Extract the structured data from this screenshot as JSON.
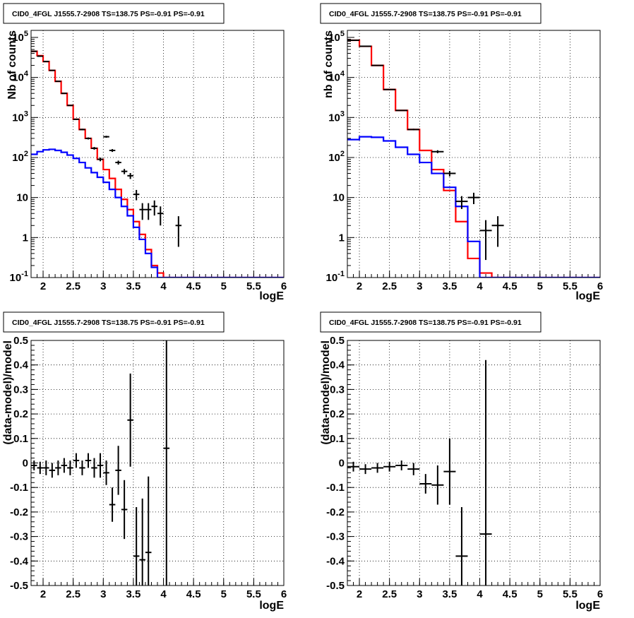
{
  "chart_data": [
    {
      "type": "histogram",
      "title": "CID0_4FGL J1555.7-2908 TS=138.75 PS=-0.91 PS=-0.91",
      "xlabel": "logE",
      "ylabel": "Nb of counts",
      "xlim": [
        1.8,
        6
      ],
      "ylim": [
        0.1,
        150000
      ],
      "yscale": "log",
      "grid": true,
      "x_ticks": [
        "2",
        "2.5",
        "3",
        "3.5",
        "4",
        "4.5",
        "5",
        "5.5",
        "6"
      ],
      "y_ticks": [
        "10^-1",
        "1",
        "10",
        "10^2",
        "10^3",
        "10^4",
        "10^5"
      ],
      "bin_width": 0.1,
      "bin_start": 1.8,
      "series": [
        {
          "role": "total_model",
          "color": "#ff0000",
          "values": [
            45000,
            35000,
            25000,
            15000,
            8000,
            4000,
            2000,
            900,
            500,
            300,
            170,
            90,
            50,
            30,
            16,
            9,
            5,
            2.5,
            1.2,
            0.5,
            0.2,
            0.13,
            0.1,
            0.1,
            0.1,
            0.1,
            0.1,
            0.1,
            0.1,
            0.1,
            0.1,
            0.1,
            0.1,
            0.1,
            0.1,
            0.1,
            0.1,
            0.1,
            0.1,
            0.1,
            0.1,
            0.1
          ]
        },
        {
          "role": "source_model",
          "color": "#0000ff",
          "values": [
            120,
            140,
            155,
            160,
            150,
            135,
            115,
            95,
            75,
            55,
            42,
            32,
            24,
            16,
            10,
            6,
            3.5,
            1.8,
            0.9,
            0.4,
            0.18,
            0.1,
            0.1,
            0.1,
            0.1,
            0.1,
            0.1,
            0.1,
            0.1,
            0.1,
            0.1,
            0.1,
            0.1,
            0.1,
            0.1,
            0.1,
            0.1,
            0.1,
            0.1,
            0.1,
            0.1,
            0.1
          ]
        },
        {
          "role": "data",
          "color": "#000000",
          "points": [
            {
              "x": 1.85,
              "y": 45000
            },
            {
              "x": 1.95,
              "y": 34000
            },
            {
              "x": 2.05,
              "y": 25000
            },
            {
              "x": 2.15,
              "y": 15000
            },
            {
              "x": 2.25,
              "y": 8000
            },
            {
              "x": 2.35,
              "y": 4000
            },
            {
              "x": 2.45,
              "y": 2000
            },
            {
              "x": 2.55,
              "y": 900
            },
            {
              "x": 2.65,
              "y": 500
            },
            {
              "x": 2.75,
              "y": 300
            },
            {
              "x": 2.85,
              "y": 170
            },
            {
              "x": 2.95,
              "y": 90
            },
            {
              "x": 3.05,
              "y": 330
            },
            {
              "x": 3.15,
              "y": 150
            },
            {
              "x": 3.25,
              "y": 75
            },
            {
              "x": 3.35,
              "y": 45
            },
            {
              "x": 3.45,
              "y": 35
            },
            {
              "x": 3.55,
              "y": 12
            },
            {
              "x": 3.65,
              "y": 5
            },
            {
              "x": 3.75,
              "y": 5
            },
            {
              "x": 3.85,
              "y": 6
            },
            {
              "x": 3.95,
              "y": 4
            },
            {
              "x": 4.25,
              "y": 2
            }
          ]
        }
      ]
    },
    {
      "type": "histogram",
      "title": "CID0_4FGL J1555.7-2908 TS=138.75 PS=-0.91 PS=-0.91",
      "xlabel": "logE",
      "ylabel": "nb of counts",
      "xlim": [
        1.8,
        6
      ],
      "ylim": [
        0.1,
        150000
      ],
      "yscale": "log",
      "grid": true,
      "x_ticks": [
        "2",
        "2.5",
        "3",
        "3.5",
        "4",
        "4.5",
        "5",
        "5.5",
        "6"
      ],
      "y_ticks": [
        "10^-1",
        "1",
        "10",
        "10^2",
        "10^3",
        "10^4",
        "10^5"
      ],
      "bin_width": 0.2,
      "bin_start": 1.8,
      "series": [
        {
          "role": "total_model",
          "color": "#ff0000",
          "values": [
            85000,
            60000,
            20000,
            5000,
            1500,
            500,
            150,
            50,
            15,
            2.5,
            0.3,
            0.13,
            0.1,
            0.1,
            0.1,
            0.1,
            0.1,
            0.1,
            0.1,
            0.1,
            0.1
          ]
        },
        {
          "role": "source_model",
          "color": "#0000ff",
          "values": [
            280,
            330,
            320,
            260,
            180,
            120,
            75,
            40,
            18,
            6,
            0.8,
            0.1,
            0.1,
            0.1,
            0.1,
            0.1,
            0.1,
            0.1,
            0.1,
            0.1,
            0.1
          ]
        },
        {
          "role": "data",
          "color": "#000000",
          "points": [
            {
              "x": 1.9,
              "y": 85000
            },
            {
              "x": 2.1,
              "y": 60000
            },
            {
              "x": 2.3,
              "y": 20000
            },
            {
              "x": 2.5,
              "y": 5000
            },
            {
              "x": 2.7,
              "y": 1500
            },
            {
              "x": 2.9,
              "y": 500
            },
            {
              "x": 3.3,
              "y": 140
            },
            {
              "x": 3.5,
              "y": 40
            },
            {
              "x": 3.7,
              "y": 8
            },
            {
              "x": 3.9,
              "y": 10
            },
            {
              "x": 4.1,
              "y": 1.5
            },
            {
              "x": 4.3,
              "y": 2
            }
          ]
        }
      ]
    },
    {
      "type": "scatter",
      "title": "CID0_4FGL J1555.7-2908 TS=138.75 PS=-0.91 PS=-0.91",
      "xlabel": "logE",
      "ylabel": "(data-model)/model",
      "xlim": [
        1.8,
        6
      ],
      "ylim": [
        -0.5,
        0.5
      ],
      "grid": true,
      "x_ticks": [
        "2",
        "2.5",
        "3",
        "3.5",
        "4",
        "4.5",
        "5",
        "5.5",
        "6"
      ],
      "y_ticks": [
        "-0.5",
        "-0.4",
        "-0.3",
        "-0.2",
        "-0.1",
        "0",
        "0.1",
        "0.2",
        "0.3",
        "0.4",
        "0.5"
      ],
      "xerr": 0.05,
      "points": [
        {
          "x": 1.85,
          "y": -0.01,
          "err": 0.02
        },
        {
          "x": 1.95,
          "y": -0.02,
          "err": 0.025
        },
        {
          "x": 2.05,
          "y": -0.02,
          "err": 0.03
        },
        {
          "x": 2.15,
          "y": -0.03,
          "err": 0.03
        },
        {
          "x": 2.25,
          "y": -0.02,
          "err": 0.03
        },
        {
          "x": 2.35,
          "y": -0.01,
          "err": 0.03
        },
        {
          "x": 2.45,
          "y": -0.02,
          "err": 0.03
        },
        {
          "x": 2.55,
          "y": 0.01,
          "err": 0.03
        },
        {
          "x": 2.65,
          "y": -0.02,
          "err": 0.03
        },
        {
          "x": 2.75,
          "y": 0.01,
          "err": 0.03
        },
        {
          "x": 2.85,
          "y": -0.02,
          "err": 0.04
        },
        {
          "x": 2.95,
          "y": -0.01,
          "err": 0.05
        },
        {
          "x": 3.05,
          "y": -0.04,
          "err": 0.05
        },
        {
          "x": 3.15,
          "y": -0.17,
          "err": 0.07
        },
        {
          "x": 3.25,
          "y": -0.03,
          "err": 0.1
        },
        {
          "x": 3.35,
          "y": -0.19,
          "err": 0.12
        },
        {
          "x": 3.45,
          "y": 0.175,
          "err": 0.19
        },
        {
          "x": 3.55,
          "y": -0.38,
          "err": 0.2
        },
        {
          "x": 3.65,
          "y": -0.395,
          "err": 0.25
        },
        {
          "x": 3.75,
          "y": -0.365,
          "err": 0.31
        },
        {
          "x": 4.05,
          "y": 0.06,
          "err": 0.9
        }
      ]
    },
    {
      "type": "scatter",
      "title": "CID0_4FGL J1555.7-2908 TS=138.75 PS=-0.91 PS=-0.91",
      "xlabel": "logE",
      "ylabel": "(data-model)/model",
      "xlim": [
        1.8,
        6
      ],
      "ylim": [
        -0.5,
        0.5
      ],
      "grid": true,
      "x_ticks": [
        "2",
        "2.5",
        "3",
        "3.5",
        "4",
        "4.5",
        "5",
        "5.5",
        "6"
      ],
      "y_ticks": [
        "-0.5",
        "-0.4",
        "-0.3",
        "-0.2",
        "-0.1",
        "0",
        "0.1",
        "0.2",
        "0.3",
        "0.4",
        "0.5"
      ],
      "xerr": 0.1,
      "points": [
        {
          "x": 1.9,
          "y": -0.015,
          "err": 0.02
        },
        {
          "x": 2.1,
          "y": -0.025,
          "err": 0.02
        },
        {
          "x": 2.3,
          "y": -0.02,
          "err": 0.02
        },
        {
          "x": 2.5,
          "y": -0.015,
          "err": 0.02
        },
        {
          "x": 2.7,
          "y": -0.01,
          "err": 0.02
        },
        {
          "x": 2.9,
          "y": -0.025,
          "err": 0.025
        },
        {
          "x": 3.1,
          "y": -0.085,
          "err": 0.04
        },
        {
          "x": 3.3,
          "y": -0.09,
          "err": 0.08
        },
        {
          "x": 3.5,
          "y": -0.035,
          "err": 0.135
        },
        {
          "x": 3.7,
          "y": -0.38,
          "err": 0.2
        },
        {
          "x": 4.1,
          "y": -0.29,
          "err": 0.71
        }
      ]
    }
  ]
}
